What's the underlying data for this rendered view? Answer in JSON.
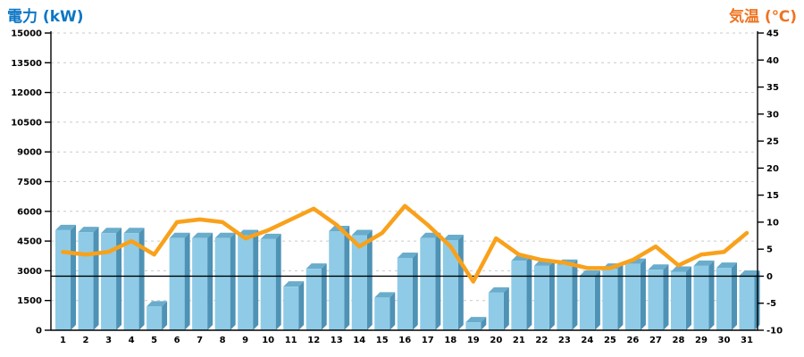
{
  "titles": {
    "left": "電力 (kW)",
    "right": "気温 (℃)"
  },
  "colors": {
    "bar_front": "#8FCBE6",
    "bar_side": "#4E92B5",
    "bar_top": "#69ACCB",
    "temperature_line": "#F9A11B",
    "left_title": "#0B76C6",
    "right_title": "#EE7420",
    "grid": "#C9C9C9",
    "axis": "#000000",
    "label": "#000000"
  },
  "chart_data": {
    "type": "combo",
    "title": "",
    "categories": [
      "1",
      "2",
      "3",
      "4",
      "5",
      "6",
      "7",
      "8",
      "9",
      "10",
      "11",
      "12",
      "13",
      "14",
      "15",
      "16",
      "17",
      "18",
      "19",
      "20",
      "21",
      "22",
      "23",
      "24",
      "25",
      "26",
      "27",
      "28",
      "29",
      "30",
      "31"
    ],
    "series": [
      {
        "name": "電力",
        "type": "bar",
        "axis": "left",
        "unit": "kW",
        "values": [
          5050,
          4950,
          4900,
          4900,
          1200,
          4650,
          4650,
          4650,
          4800,
          4600,
          2200,
          3100,
          5000,
          4800,
          1650,
          3650,
          4650,
          4550,
          400,
          1900,
          3500,
          3250,
          3300,
          2750,
          3100,
          3350,
          3050,
          2950,
          3250,
          3150,
          2750
        ]
      },
      {
        "name": "気温",
        "type": "line",
        "axis": "right",
        "unit": "℃",
        "values": [
          4.5,
          4,
          4.5,
          6.5,
          4,
          10,
          10.5,
          10,
          7,
          8.5,
          10.5,
          12.5,
          9.5,
          5.5,
          8,
          13,
          9.5,
          5.5,
          -1,
          7,
          4,
          3,
          2.5,
          1.5,
          1.5,
          3,
          5.5,
          2,
          4,
          4.5,
          8
        ]
      }
    ],
    "left_axis": {
      "title": "電力 (kW)",
      "min": 0,
      "max": 15000,
      "step": 1500,
      "labels": [
        "15000",
        "13500",
        "12000",
        "10500",
        "9000",
        "7500",
        "6000",
        "4500",
        "3000",
        "1500",
        "0"
      ]
    },
    "right_axis": {
      "title": "気温 (℃)",
      "min": -10,
      "max": 45,
      "step": 5,
      "labels": [
        "45",
        "40",
        "35",
        "30",
        "25",
        "20",
        "15",
        "10",
        "5",
        "0",
        "-5",
        "-10"
      ]
    },
    "zero_line_value_c": 0,
    "grid": "horizontal-dashed",
    "legend": "none"
  }
}
